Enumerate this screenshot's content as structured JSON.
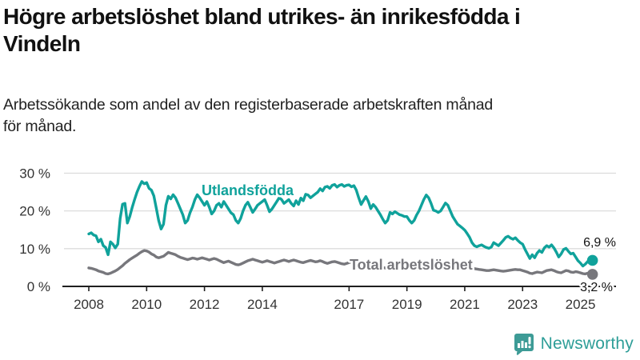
{
  "header": {
    "title": "Högre arbetslöshet bland utrikes- än inrikesfödda i\nVindeln",
    "subtitle": "Arbetssökande som andel av den registerbaserade arbetskraften månad\nför månad."
  },
  "chart_data": {
    "type": "line",
    "title": "Högre arbetslöshet bland utrikes- än inrikesfödda i Vindeln",
    "subtitle": "Arbetssökande som andel av den registerbaserade arbetskraften månad för månad.",
    "unit": "%",
    "x_start_year": 2008,
    "x_step": "month",
    "x_end": "2025-06",
    "xlim": [
      2007.1,
      2026.2
    ],
    "ylim": [
      0,
      30
    ],
    "grid": "horizontal",
    "x_tick_years": [
      2008,
      2010,
      2012,
      2014,
      2017,
      2019,
      2021,
      2023,
      2025
    ],
    "y_ticks": [
      {
        "value": 0,
        "label": "0 %"
      },
      {
        "value": 10,
        "label": "10 %"
      },
      {
        "value": 20,
        "label": "20 %"
      },
      {
        "value": 30,
        "label": "30 %"
      }
    ],
    "series": [
      {
        "name": "Utlandsfödda",
        "color": "#10A29B",
        "end_value_label": "6,9 %",
        "values": [
          13.9,
          14.2,
          13.6,
          13.4,
          11.8,
          12.5,
          10.8,
          10.3,
          8.4,
          11.8,
          11.2,
          10.2,
          11.2,
          18.0,
          21.8,
          22.0,
          16.8,
          18.5,
          20.9,
          23.0,
          25.0,
          26.5,
          27.8,
          27.2,
          27.5,
          26.0,
          25.5,
          24.0,
          20.8,
          17.4,
          15.2,
          16.5,
          21.5,
          23.9,
          23.2,
          24.3,
          23.5,
          22.0,
          20.5,
          19.0,
          16.8,
          17.5,
          19.5,
          21.0,
          23.0,
          24.3,
          23.5,
          22.5,
          21.5,
          22.5,
          21.0,
          19.2,
          20.0,
          21.5,
          22.0,
          21.0,
          22.5,
          21.5,
          20.5,
          19.5,
          19.0,
          17.5,
          16.8,
          18.0,
          20.0,
          21.5,
          22.3,
          21.0,
          19.6,
          20.5,
          21.5,
          22.0,
          22.5,
          23.0,
          21.5,
          19.8,
          20.5,
          21.5,
          22.5,
          23.5,
          23.0,
          22.0,
          22.5,
          23.0,
          22.0,
          21.3,
          22.7,
          21.7,
          23.4,
          22.7,
          24.4,
          24.2,
          23.5,
          24.0,
          24.5,
          25.0,
          25.9,
          25.3,
          26.3,
          26.5,
          26.0,
          26.8,
          27.0,
          26.3,
          26.8,
          27.0,
          26.5,
          26.8,
          26.9,
          26.4,
          26.7,
          25.5,
          23.5,
          21.7,
          22.8,
          23.8,
          22.5,
          20.6,
          21.7,
          21.0,
          20.0,
          19.0,
          17.8,
          16.8,
          17.5,
          19.6,
          19.2,
          19.8,
          19.4,
          19.0,
          18.8,
          18.5,
          18.5,
          17.5,
          16.8,
          17.5,
          18.9,
          20.0,
          21.5,
          23.0,
          24.2,
          23.5,
          22.0,
          20.2,
          20.0,
          19.6,
          20.0,
          21.0,
          22.1,
          21.5,
          20.0,
          18.5,
          17.5,
          16.5,
          16.0,
          15.5,
          14.9,
          14.0,
          13.0,
          11.6,
          10.8,
          10.5,
          10.8,
          11.0,
          10.6,
          10.3,
          10.1,
          10.4,
          11.6,
          11.2,
          10.8,
          11.5,
          12.2,
          13.0,
          13.3,
          12.8,
          12.5,
          12.9,
          12.2,
          11.6,
          11.2,
          9.8,
          8.6,
          7.4,
          8.4,
          7.6,
          8.8,
          9.5,
          9.0,
          10.2,
          10.8,
          10.4,
          11.0,
          10.2,
          9.1,
          7.8,
          8.6,
          9.8,
          10.1,
          9.3,
          8.6,
          8.8,
          7.8,
          6.8,
          6.2,
          5.4,
          5.9,
          6.6,
          7.2,
          6.9
        ]
      },
      {
        "name": "Total arbetslöshet",
        "color": "#77777C",
        "end_value_label": "3,2 %",
        "values": [
          4.9,
          4.8,
          4.6,
          4.4,
          4.1,
          3.9,
          3.7,
          3.4,
          3.3,
          3.5,
          3.8,
          4.1,
          4.5,
          5.0,
          5.5,
          6.1,
          6.6,
          7.1,
          7.5,
          7.9,
          8.3,
          8.8,
          9.2,
          9.5,
          9.4,
          9.1,
          8.6,
          8.3,
          7.8,
          7.6,
          7.8,
          8.0,
          8.5,
          9.0,
          8.8,
          8.6,
          8.4,
          8.0,
          7.7,
          7.5,
          7.3,
          7.1,
          7.3,
          7.5,
          7.4,
          7.2,
          7.4,
          7.6,
          7.4,
          7.2,
          7.0,
          7.2,
          7.4,
          7.2,
          6.9,
          6.6,
          6.3,
          6.5,
          6.7,
          6.4,
          6.1,
          5.8,
          5.7,
          5.9,
          6.2,
          6.5,
          6.8,
          7.0,
          7.2,
          7.0,
          6.8,
          6.6,
          6.4,
          6.6,
          6.8,
          6.6,
          6.4,
          6.2,
          6.4,
          6.6,
          6.8,
          7.0,
          6.8,
          6.6,
          6.8,
          7.0,
          6.8,
          6.6,
          6.4,
          6.3,
          6.5,
          6.7,
          6.9,
          6.7,
          6.5,
          6.6,
          6.8,
          6.6,
          6.3,
          6.1,
          6.3,
          6.5,
          6.6,
          6.4,
          6.2,
          6.0,
          5.9,
          6.1,
          6.3,
          6.5,
          6.3,
          6.1,
          5.9,
          5.7,
          5.6,
          5.8,
          5.9,
          5.7,
          5.5,
          5.4,
          5.3,
          5.2,
          5.0,
          4.9,
          4.8,
          4.9,
          5.0,
          4.9,
          4.8,
          4.7,
          4.6,
          4.7,
          4.8,
          4.9,
          4.8,
          4.7,
          4.6,
          4.7,
          4.9,
          5.0,
          5.1,
          5.0,
          4.9,
          5.0,
          5.2,
          5.3,
          5.6,
          6.0,
          6.3,
          6.4,
          6.2,
          6.0,
          5.8,
          5.6,
          5.4,
          5.3,
          5.2,
          5.1,
          5.0,
          4.9,
          4.7,
          4.6,
          4.5,
          4.4,
          4.3,
          4.2,
          4.2,
          4.3,
          4.4,
          4.3,
          4.2,
          4.1,
          4.0,
          4.1,
          4.2,
          4.3,
          4.4,
          4.5,
          4.4,
          4.4,
          4.2,
          4.0,
          3.8,
          3.5,
          3.4,
          3.6,
          3.8,
          3.7,
          3.6,
          3.9,
          4.2,
          4.3,
          4.4,
          4.2,
          3.9,
          3.7,
          3.6,
          3.9,
          4.2,
          4.1,
          3.8,
          3.7,
          3.9,
          3.8,
          3.6,
          3.4,
          3.3,
          3.5,
          3.4,
          3.2
        ]
      }
    ],
    "colors": {
      "grid": "#DCDCDC",
      "axis": "#1F1F1F",
      "text": "#333333"
    },
    "legend_position": "inline-labels"
  },
  "branding": {
    "logo_text": "Newsworthy",
    "color": "#2E9E98"
  }
}
